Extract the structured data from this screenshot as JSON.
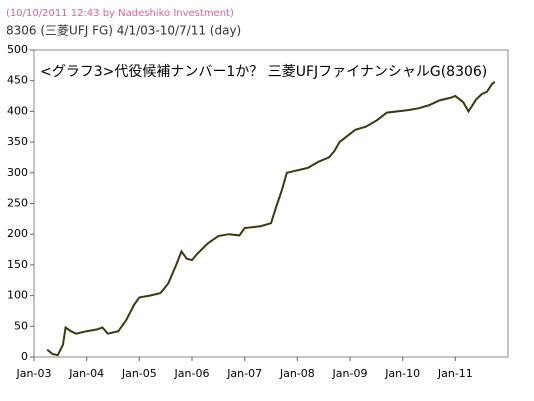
{
  "chart_data": {
    "type": "line",
    "credit": "(10/10/2011 12:43 by Nadeshiko Investment)",
    "subtitle": "8306 (三菱UFJ FG) 4/1/03-10/7/11 (day)",
    "title": "<グラフ3>代役候補ナンバー1か？ 三菱UFJファイナンシャルG(8306)",
    "xlim": [
      2003,
      2012
    ],
    "xticks": [
      {
        "value": 2003,
        "label": "Jan-03"
      },
      {
        "value": 2004,
        "label": "Jan-04"
      },
      {
        "value": 2005,
        "label": "Jan-05"
      },
      {
        "value": 2006,
        "label": "Jan-06"
      },
      {
        "value": 2007,
        "label": "Jan-07"
      },
      {
        "value": 2008,
        "label": "Jan-08"
      },
      {
        "value": 2009,
        "label": "Jan-09"
      },
      {
        "value": 2010,
        "label": "Jan-10"
      },
      {
        "value": 2011,
        "label": "Jan-11"
      }
    ],
    "ylim": [
      0,
      500
    ],
    "yticks": [
      0,
      50,
      100,
      150,
      200,
      250,
      300,
      350,
      400,
      450,
      500
    ],
    "series": [
      {
        "color": "#3a3a12",
        "x": [
          2003.25,
          2003.35,
          2003.45,
          2003.55,
          2003.6,
          2003.7,
          2003.8,
          2003.9,
          2004.0,
          2004.2,
          2004.3,
          2004.4,
          2004.6,
          2004.75,
          2004.9,
          2005.0,
          2005.2,
          2005.4,
          2005.55,
          2005.7,
          2005.8,
          2005.9,
          2006.0,
          2006.1,
          2006.3,
          2006.5,
          2006.7,
          2006.9,
          2007.0,
          2007.3,
          2007.5,
          2007.6,
          2007.7,
          2007.8,
          2007.95,
          2008.2,
          2008.4,
          2008.6,
          2008.7,
          2008.8,
          2008.95,
          2009.1,
          2009.3,
          2009.5,
          2009.7,
          2009.9,
          2010.1,
          2010.3,
          2010.5,
          2010.7,
          2010.9,
          2011.0,
          2011.15,
          2011.25,
          2011.4,
          2011.5,
          2011.6,
          2011.7,
          2011.75
        ],
        "values": [
          12,
          5,
          3,
          20,
          48,
          42,
          38,
          40,
          42,
          45,
          48,
          38,
          42,
          60,
          85,
          97,
          100,
          104,
          120,
          150,
          172,
          160,
          158,
          168,
          185,
          197,
          200,
          198,
          210,
          213,
          218,
          245,
          270,
          300,
          303,
          308,
          318,
          325,
          335,
          350,
          360,
          370,
          375,
          385,
          398,
          400,
          402,
          405,
          410,
          418,
          422,
          425,
          415,
          400,
          420,
          428,
          432,
          445,
          448
        ]
      }
    ]
  }
}
